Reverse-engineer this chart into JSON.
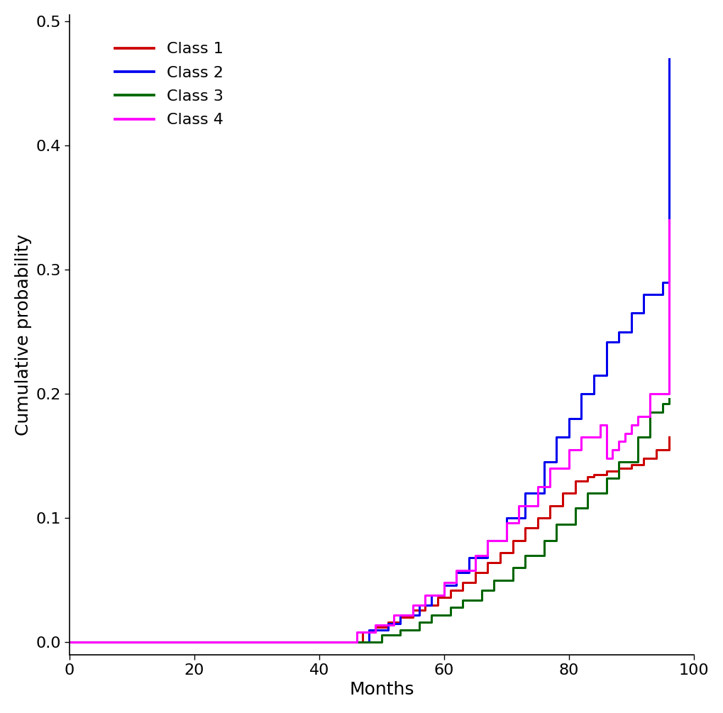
{
  "xlabel": "Months",
  "ylabel": "Cumulative probability",
  "xlim": [
    0,
    100
  ],
  "ylim": [
    -0.01,
    0.505
  ],
  "yticks": [
    0.0,
    0.1,
    0.2,
    0.3,
    0.4,
    0.5
  ],
  "xticks": [
    0,
    20,
    40,
    60,
    80,
    100
  ],
  "legend_labels": [
    "Class 1",
    "Class 2",
    "Class 3",
    "Class 4"
  ],
  "colors": [
    "#cc0000",
    "#0000ee",
    "#006600",
    "#ff00ff"
  ],
  "linewidth": 2.2,
  "class1_x": [
    0,
    46,
    47,
    49,
    51,
    53,
    55,
    57,
    59,
    61,
    63,
    65,
    67,
    69,
    71,
    73,
    75,
    77,
    79,
    81,
    83,
    84,
    86,
    88,
    90,
    92,
    94,
    96
  ],
  "class1_y": [
    0.0,
    0.0,
    0.008,
    0.012,
    0.016,
    0.02,
    0.026,
    0.03,
    0.036,
    0.042,
    0.048,
    0.056,
    0.064,
    0.072,
    0.082,
    0.092,
    0.1,
    0.11,
    0.12,
    0.13,
    0.133,
    0.135,
    0.138,
    0.14,
    0.143,
    0.148,
    0.155,
    0.165
  ],
  "class2_x": [
    0,
    46,
    48,
    51,
    53,
    56,
    58,
    60,
    62,
    64,
    67,
    70,
    73,
    76,
    78,
    80,
    82,
    84,
    86,
    88,
    90,
    92,
    95,
    96
  ],
  "class2_y": [
    0.0,
    0.0,
    0.01,
    0.015,
    0.022,
    0.03,
    0.038,
    0.046,
    0.056,
    0.068,
    0.082,
    0.1,
    0.12,
    0.145,
    0.165,
    0.18,
    0.2,
    0.215,
    0.242,
    0.25,
    0.265,
    0.28,
    0.29,
    0.47
  ],
  "class3_x": [
    0,
    48,
    50,
    53,
    56,
    58,
    61,
    63,
    66,
    68,
    71,
    73,
    76,
    78,
    81,
    83,
    86,
    88,
    91,
    93,
    95,
    96
  ],
  "class3_y": [
    0.0,
    0.0,
    0.006,
    0.01,
    0.016,
    0.022,
    0.028,
    0.034,
    0.042,
    0.05,
    0.06,
    0.07,
    0.082,
    0.095,
    0.108,
    0.12,
    0.132,
    0.145,
    0.165,
    0.185,
    0.192,
    0.196
  ],
  "class4_x": [
    0,
    44,
    46,
    49,
    52,
    55,
    57,
    60,
    62,
    65,
    67,
    70,
    72,
    75,
    77,
    80,
    82,
    85,
    86,
    87,
    88,
    89,
    90,
    91,
    93,
    95,
    96
  ],
  "class4_y": [
    0.0,
    0.0,
    0.008,
    0.014,
    0.022,
    0.03,
    0.038,
    0.048,
    0.058,
    0.07,
    0.082,
    0.096,
    0.11,
    0.125,
    0.14,
    0.155,
    0.165,
    0.175,
    0.148,
    0.155,
    0.162,
    0.168,
    0.175,
    0.182,
    0.2,
    0.2,
    0.34
  ]
}
